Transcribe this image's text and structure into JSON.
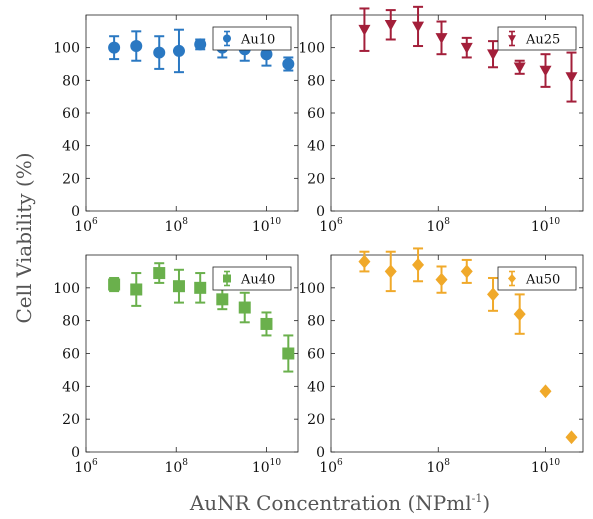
{
  "figure": {
    "xlabel_main": "AuNR Concentration (NPml",
    "xlabel_sup": "-1",
    "xlabel_end": ")",
    "ylabel": "Cell Viability (%)"
  },
  "chart_data": [
    {
      "type": "scatter",
      "series": [
        {
          "name": "Au10",
          "marker": "circle",
          "color": "#2a78c2",
          "x": [
            4200000.0,
            13000000.0,
            42000000.0,
            115000000.0,
            340000000.0,
            1050000000.0,
            3300000000.0,
            10000000000.0,
            30500000000.0
          ],
          "y": [
            100,
            101,
            97,
            98,
            102,
            100,
            99,
            96,
            90
          ],
          "err": [
            7,
            9,
            10,
            13,
            3,
            6,
            7,
            7,
            4
          ]
        }
      ],
      "xscale": "log",
      "xlim": [
        1000000.0,
        50000000000.0
      ],
      "ylim": [
        0,
        120
      ],
      "xticks": [
        {
          "b": "10",
          "e": "6"
        },
        {
          "b": "10",
          "e": "8"
        },
        {
          "b": "10",
          "e": "10"
        }
      ],
      "yticks": [
        "0",
        "20",
        "40",
        "60",
        "80",
        "100"
      ],
      "legend": "top-right",
      "grid": false
    },
    {
      "type": "scatter",
      "series": [
        {
          "name": "Au25",
          "marker": "triangle-down",
          "color": "#a31f3a",
          "x": [
            4200000.0,
            13000000.0,
            42000000.0,
            115000000.0,
            340000000.0,
            1050000000.0,
            3300000000.0,
            10000000000.0,
            30500000000.0
          ],
          "y": [
            111,
            114,
            113,
            106,
            100,
            96,
            88,
            86,
            82
          ],
          "err": [
            13,
            9,
            12,
            10,
            6,
            8,
            4,
            10,
            15
          ]
        }
      ],
      "xscale": "log",
      "xlim": [
        1000000.0,
        50000000000.0
      ],
      "ylim": [
        0,
        120
      ],
      "xticks": [
        {
          "b": "10",
          "e": "6"
        },
        {
          "b": "10",
          "e": "8"
        },
        {
          "b": "10",
          "e": "10"
        }
      ],
      "yticks": [
        "0",
        "20",
        "40",
        "60",
        "80",
        "100"
      ],
      "legend": "top-right",
      "grid": false
    },
    {
      "type": "scatter",
      "series": [
        {
          "name": "Au40",
          "marker": "square",
          "color": "#6ab04c",
          "x": [
            4200000.0,
            13000000.0,
            42000000.0,
            115000000.0,
            340000000.0,
            1050000000.0,
            3300000000.0,
            10000000000.0,
            30500000000.0
          ],
          "y": [
            102,
            99,
            109,
            101,
            100,
            93,
            88,
            78,
            60
          ],
          "err": [
            4,
            10,
            6,
            10,
            9,
            6,
            9,
            7,
            11
          ]
        }
      ],
      "xscale": "log",
      "xlim": [
        1000000.0,
        50000000000.0
      ],
      "ylim": [
        0,
        120
      ],
      "xticks": [
        {
          "b": "10",
          "e": "6"
        },
        {
          "b": "10",
          "e": "8"
        },
        {
          "b": "10",
          "e": "10"
        }
      ],
      "yticks": [
        "0",
        "20",
        "40",
        "60",
        "80",
        "100"
      ],
      "legend": "top-right",
      "grid": false
    },
    {
      "type": "scatter",
      "series": [
        {
          "name": "Au50",
          "marker": "diamond",
          "color": "#f0a92a",
          "x": [
            4200000.0,
            13000000.0,
            42000000.0,
            115000000.0,
            340000000.0,
            1050000000.0,
            3300000000.0,
            10000000000.0,
            30500000000.0
          ],
          "y": [
            116,
            110,
            114,
            105,
            110,
            96,
            84,
            37,
            9
          ],
          "err": [
            6,
            12,
            10,
            8,
            7,
            10,
            12,
            0,
            0
          ]
        }
      ],
      "xscale": "log",
      "xlim": [
        1000000.0,
        50000000000.0
      ],
      "ylim": [
        0,
        120
      ],
      "xticks": [
        {
          "b": "10",
          "e": "6"
        },
        {
          "b": "10",
          "e": "8"
        },
        {
          "b": "10",
          "e": "10"
        }
      ],
      "yticks": [
        "0",
        "20",
        "40",
        "60",
        "80",
        "100"
      ],
      "legend": "top-right",
      "grid": false
    }
  ]
}
